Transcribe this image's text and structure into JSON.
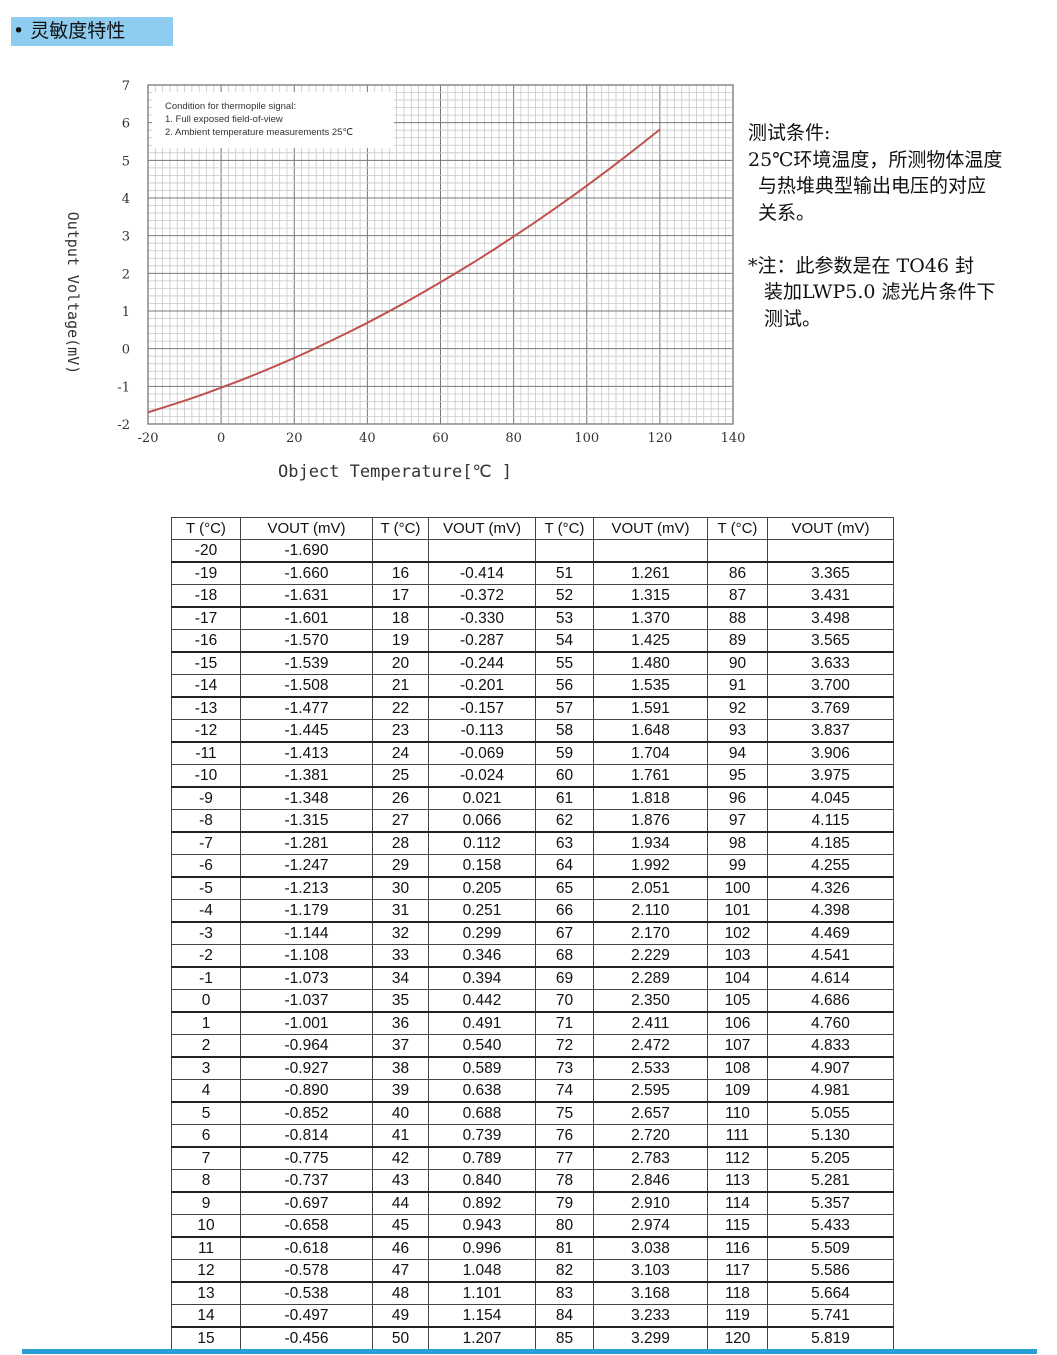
{
  "section": {
    "title": "• 灵敏度特性"
  },
  "notes": {
    "heading": "测试条件:",
    "line1": "25℃环境温度，所测物体温度",
    "line2": "与热堆典型输出电压的对应",
    "line3": "关系。",
    "note1": "*注：此参数是在 TO46 封",
    "note2": "装加LWP5.0 滤光片条件下",
    "note3": "测试。"
  },
  "chart_data": {
    "type": "line",
    "xlabel": "Object Temperature[℃ ]",
    "ylabel": "Output Voltage(mV)",
    "xlim": [
      -20,
      140
    ],
    "ylim": [
      -2,
      7
    ],
    "x_ticks": [
      "-20",
      "0",
      "20",
      "40",
      "60",
      "80",
      "100",
      "120",
      "140"
    ],
    "y_ticks": [
      "7",
      "6",
      "5",
      "4",
      "3",
      "2",
      "1",
      "0",
      "-1",
      "-2"
    ],
    "grid": true,
    "line_color": "#c0504d",
    "annotation": [
      "Condition for thermopile signal:",
      "1.  Full exposed field-of-view",
      "2.  Ambient temperature measurements 25℃"
    ],
    "series": [
      {
        "x": [
          -20,
          -15,
          -10,
          -5,
          0,
          5,
          10,
          15,
          20,
          25,
          30,
          35,
          40,
          45,
          50,
          55,
          60,
          65,
          70,
          75,
          80,
          85,
          90,
          95,
          100,
          105,
          110,
          115,
          120
        ],
        "y": [
          -1.69,
          -1.539,
          -1.381,
          -1.213,
          -1.037,
          -0.852,
          -0.658,
          -0.456,
          -0.244,
          -0.024,
          0.205,
          0.442,
          0.688,
          0.943,
          1.207,
          1.48,
          1.761,
          2.051,
          2.35,
          2.657,
          2.974,
          3.299,
          3.633,
          3.975,
          4.326,
          4.686,
          5.055,
          5.433,
          5.819
        ]
      }
    ]
  },
  "table": {
    "headers": [
      "T (°C)",
      "VOUT (mV)",
      "T (°C)",
      "VOUT (mV)",
      "T (°C)",
      "VOUT (mV)",
      "T (°C)",
      "VOUT (mV)"
    ],
    "col1_t": [
      "-20",
      "-19",
      "-18",
      "-17",
      "-16",
      "-15",
      "-14",
      "-13",
      "-12",
      "-11",
      "-10",
      "-9",
      "-8",
      "-7",
      "-6",
      "-5",
      "-4",
      "-3",
      "-2",
      "-1",
      "0",
      "1",
      "2",
      "3",
      "4",
      "5",
      "6",
      "7",
      "8",
      "9",
      "10",
      "11",
      "12",
      "13",
      "14",
      "15"
    ],
    "col1_v": [
      "-1.690",
      "-1.660",
      "-1.631",
      "-1.601",
      "-1.570",
      "-1.539",
      "-1.508",
      "-1.477",
      "-1.445",
      "-1.413",
      "-1.381",
      "-1.348",
      "-1.315",
      "-1.281",
      "-1.247",
      "-1.213",
      "-1.179",
      "-1.144",
      "-1.108",
      "-1.073",
      "-1.037",
      "-1.001",
      "-0.964",
      "-0.927",
      "-0.890",
      "-0.852",
      "-0.814",
      "-0.775",
      "-0.737",
      "-0.697",
      "-0.658",
      "-0.618",
      "-0.578",
      "-0.538",
      "-0.497",
      "-0.456"
    ],
    "col2_t": [
      "16",
      "17",
      "18",
      "19",
      "20",
      "21",
      "22",
      "23",
      "24",
      "25",
      "26",
      "27",
      "28",
      "29",
      "30",
      "31",
      "32",
      "33",
      "34",
      "35",
      "36",
      "37",
      "38",
      "39",
      "40",
      "41",
      "42",
      "43",
      "44",
      "45",
      "46",
      "47",
      "48",
      "49",
      "50"
    ],
    "col2_v": [
      "-0.414",
      "-0.372",
      "-0.330",
      "-0.287",
      "-0.244",
      "-0.201",
      "-0.157",
      "-0.113",
      "-0.069",
      "-0.024",
      "0.021",
      "0.066",
      "0.112",
      "0.158",
      "0.205",
      "0.251",
      "0.299",
      "0.346",
      "0.394",
      "0.442",
      "0.491",
      "0.540",
      "0.589",
      "0.638",
      "0.688",
      "0.739",
      "0.789",
      "0.840",
      "0.892",
      "0.943",
      "0.996",
      "1.048",
      "1.101",
      "1.154",
      "1.207"
    ],
    "col3_t": [
      "51",
      "52",
      "53",
      "54",
      "55",
      "56",
      "57",
      "58",
      "59",
      "60",
      "61",
      "62",
      "63",
      "64",
      "65",
      "66",
      "67",
      "68",
      "69",
      "70",
      "71",
      "72",
      "73",
      "74",
      "75",
      "76",
      "77",
      "78",
      "79",
      "80",
      "81",
      "82",
      "83",
      "84",
      "85"
    ],
    "col3_v": [
      "1.261",
      "1.315",
      "1.370",
      "1.425",
      "1.480",
      "1.535",
      "1.591",
      "1.648",
      "1.704",
      "1.761",
      "1.818",
      "1.876",
      "1.934",
      "1.992",
      "2.051",
      "2.110",
      "2.170",
      "2.229",
      "2.289",
      "2.350",
      "2.411",
      "2.472",
      "2.533",
      "2.595",
      "2.657",
      "2.720",
      "2.783",
      "2.846",
      "2.910",
      "2.974",
      "3.038",
      "3.103",
      "3.168",
      "3.233",
      "3.299"
    ],
    "col4_t": [
      "86",
      "87",
      "88",
      "89",
      "90",
      "91",
      "92",
      "93",
      "94",
      "95",
      "96",
      "97",
      "98",
      "99",
      "100",
      "101",
      "102",
      "103",
      "104",
      "105",
      "106",
      "107",
      "108",
      "109",
      "110",
      "111",
      "112",
      "113",
      "114",
      "115",
      "116",
      "117",
      "118",
      "119",
      "120"
    ],
    "col4_v": [
      "3.365",
      "3.431",
      "3.498",
      "3.565",
      "3.633",
      "3.700",
      "3.769",
      "3.837",
      "3.906",
      "3.975",
      "4.045",
      "4.115",
      "4.185",
      "4.255",
      "4.326",
      "4.398",
      "4.469",
      "4.541",
      "4.614",
      "4.686",
      "4.760",
      "4.833",
      "4.907",
      "4.981",
      "5.055",
      "5.130",
      "5.205",
      "5.281",
      "5.357",
      "5.433",
      "5.509",
      "5.586",
      "5.664",
      "5.741",
      "5.819"
    ]
  }
}
